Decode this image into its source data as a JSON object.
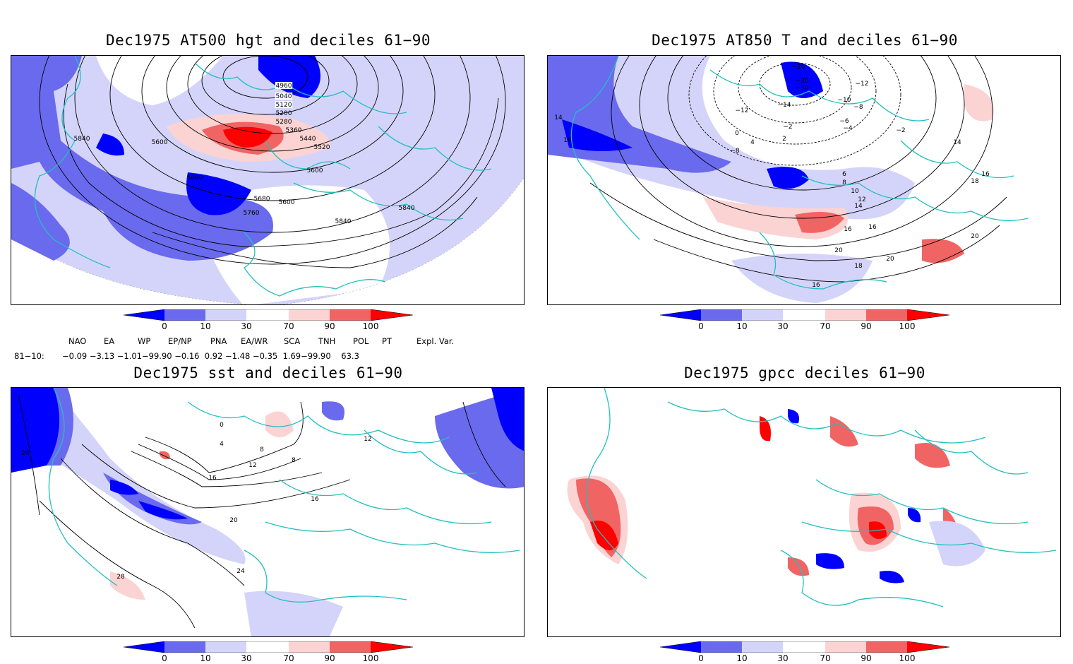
{
  "panels": [
    {
      "title": "Dec1975 AT500 hgt and deciles 61−90",
      "contour_labels": [
        "4960",
        "5040",
        "5120",
        "5200",
        "5280",
        "5360",
        "5440",
        "5520",
        "5600",
        "5600",
        "5600",
        "5680",
        "5680",
        "5760",
        "5840",
        "5840",
        "5840"
      ]
    },
    {
      "title": "Dec1975 AT850 T and deciles 61−90",
      "contour_labels": [
        "−26",
        "−30",
        "−30",
        "−12",
        "−10",
        "−8",
        "−6",
        "−4",
        "−2",
        "−12",
        "−14",
        "−8",
        "0",
        "−2",
        "2",
        "4",
        "6",
        "8",
        "10",
        "12",
        "14",
        "14",
        "14",
        "16",
        "16",
        "16",
        "16",
        "18",
        "20",
        "20",
        "20",
        "18",
        "16"
      ]
    },
    {
      "title": "Dec1975 sst and deciles 61−90",
      "contour_labels": [
        "0",
        "4",
        "8",
        "12",
        "16",
        "16",
        "20",
        "24",
        "24",
        "28",
        "12",
        "8"
      ]
    },
    {
      "title": "Dec1975 gpcc deciles 61−90",
      "contour_labels": []
    }
  ],
  "colorbar": {
    "ticks": [
      "0",
      "10",
      "30",
      "70",
      "90",
      "100"
    ],
    "colors": {
      "deep_blue": "#0000ff",
      "mid_blue": "#6a6aee",
      "light_blue": "#d4d4fa",
      "white": "#ffffff",
      "light_red": "#fbd3d3",
      "mid_red": "#f06464",
      "deep_red": "#ff0000"
    }
  },
  "indices": {
    "headers": [
      "NAO",
      "EA",
      "WP",
      "EP/NP",
      "PNA",
      "EA/WR",
      "SCA",
      "TNH",
      "POL",
      "PT",
      "Expl. Var."
    ],
    "row_label": "81−10:",
    "values": "−0.09 −3.13 −1.01−99.90 −0.16  0.92 −1.48 −0.35  1.69−99.90    63.3"
  },
  "coast_color": "#22c0c0"
}
